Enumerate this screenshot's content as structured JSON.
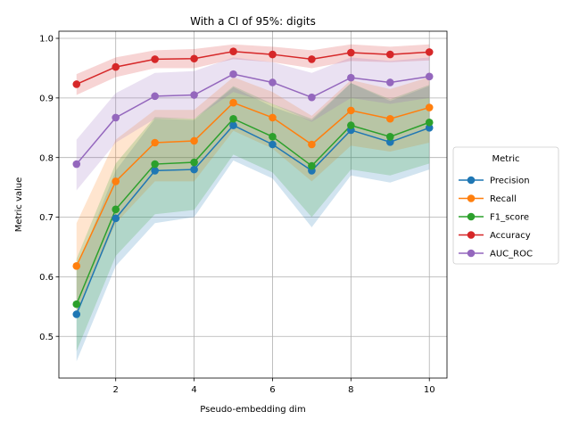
{
  "chart_data": {
    "type": "line",
    "title": "With a CI of 95%: digits",
    "xlabel": "Pseudo-embedding dim",
    "ylabel": "Metric value",
    "xlim": [
      0.55,
      10.45
    ],
    "ylim": [
      0.43,
      1.012
    ],
    "xticks": [
      2,
      4,
      6,
      8,
      10
    ],
    "yticks": [
      0.5,
      0.6,
      0.7,
      0.8,
      0.9,
      1.0
    ],
    "ytick_labels": [
      "0.5",
      "0.6",
      "0.7",
      "0.8",
      "0.9",
      "1.0"
    ],
    "grid": true,
    "legend_title": "Metric",
    "legend_position": "center-right outside",
    "x": [
      1,
      2,
      3,
      4,
      5,
      6,
      7,
      8,
      9,
      10
    ],
    "series": [
      {
        "name": "Precision",
        "color": "#1f77b4",
        "values": [
          0.537,
          0.698,
          0.778,
          0.78,
          0.854,
          0.822,
          0.778,
          0.846,
          0.826,
          0.85
        ],
        "ci_low": [
          0.458,
          0.618,
          0.69,
          0.7,
          0.795,
          0.765,
          0.683,
          0.77,
          0.758,
          0.78
        ],
        "ci_high": [
          0.612,
          0.778,
          0.865,
          0.863,
          0.918,
          0.885,
          0.862,
          0.925,
          0.895,
          0.92
        ]
      },
      {
        "name": "Recall",
        "color": "#ff7f0e",
        "values": [
          0.618,
          0.76,
          0.825,
          0.828,
          0.892,
          0.867,
          0.822,
          0.879,
          0.865,
          0.884
        ],
        "ci_low": [
          0.54,
          0.69,
          0.76,
          0.76,
          0.845,
          0.815,
          0.76,
          0.82,
          0.81,
          0.825
        ],
        "ci_high": [
          0.69,
          0.83,
          0.88,
          0.88,
          0.935,
          0.91,
          0.87,
          0.93,
          0.915,
          0.935
        ]
      },
      {
        "name": "F1_score",
        "color": "#2ca02c",
        "values": [
          0.554,
          0.713,
          0.789,
          0.792,
          0.865,
          0.835,
          0.786,
          0.854,
          0.835,
          0.859
        ],
        "ci_low": [
          0.475,
          0.635,
          0.705,
          0.712,
          0.805,
          0.775,
          0.7,
          0.78,
          0.77,
          0.79
        ],
        "ci_high": [
          0.63,
          0.79,
          0.868,
          0.865,
          0.92,
          0.89,
          0.865,
          0.925,
          0.898,
          0.922
        ]
      },
      {
        "name": "Accuracy",
        "color": "#d62728",
        "values": [
          0.923,
          0.952,
          0.965,
          0.966,
          0.978,
          0.973,
          0.965,
          0.976,
          0.973,
          0.977
        ],
        "ci_low": [
          0.905,
          0.935,
          0.95,
          0.95,
          0.965,
          0.96,
          0.95,
          0.962,
          0.96,
          0.963
        ],
        "ci_high": [
          0.94,
          0.968,
          0.98,
          0.982,
          0.99,
          0.986,
          0.98,
          0.99,
          0.986,
          0.99
        ]
      },
      {
        "name": "AUC_ROC",
        "color": "#9467bd",
        "values": [
          0.789,
          0.867,
          0.903,
          0.905,
          0.94,
          0.926,
          0.901,
          0.934,
          0.926,
          0.936
        ],
        "ci_low": [
          0.745,
          0.825,
          0.865,
          0.865,
          0.91,
          0.89,
          0.86,
          0.9,
          0.89,
          0.9
        ],
        "ci_high": [
          0.83,
          0.908,
          0.942,
          0.945,
          0.968,
          0.96,
          0.942,
          0.968,
          0.962,
          0.968
        ]
      }
    ]
  }
}
